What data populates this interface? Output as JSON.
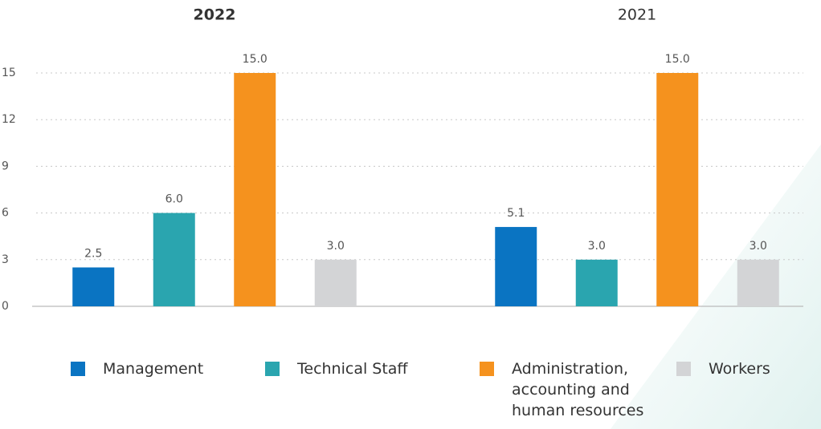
{
  "chart_data": {
    "type": "bar",
    "categories": [
      "2022",
      "2021"
    ],
    "series": [
      {
        "name": "Management",
        "color": "#0a74c2",
        "values": [
          2.5,
          5.1
        ],
        "value_labels": [
          "2.5",
          "5.1"
        ]
      },
      {
        "name": "Technical Staff",
        "color": "#2aa5af",
        "values": [
          6,
          3
        ],
        "value_labels": [
          "6.0",
          "3.0"
        ]
      },
      {
        "name": "Administration, accounting and human resources",
        "color": "#f5921e",
        "values": [
          15,
          15
        ],
        "value_labels": [
          "15.0",
          "15.0"
        ]
      },
      {
        "name": "Workers",
        "color": "#d3d4d6",
        "values": [
          3,
          3
        ],
        "value_labels": [
          "3.0",
          "3.0"
        ]
      }
    ],
    "ylim": [
      0,
      15
    ],
    "yticks": [
      0,
      3,
      6,
      9,
      12,
      15
    ],
    "grid": true
  }
}
